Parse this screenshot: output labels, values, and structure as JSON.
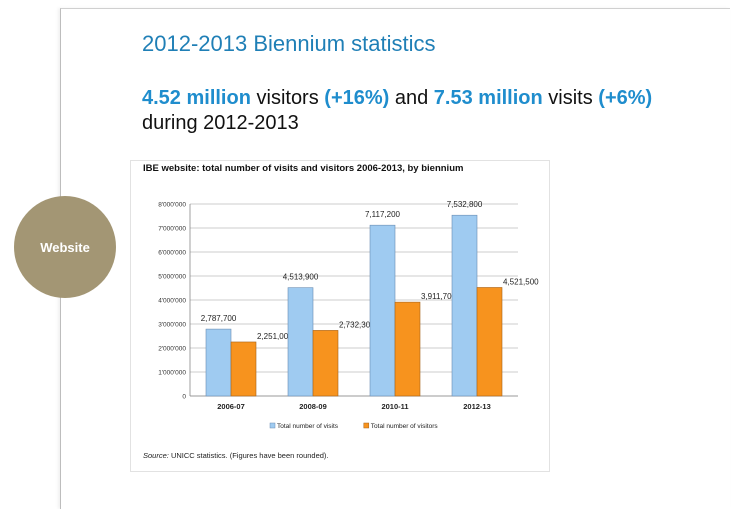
{
  "slide": {
    "title": "2012-2013 Biennium statistics",
    "headline": {
      "visitors_value": "4.52 million",
      "visitors_word": " visitors ",
      "visitors_change": "(+16%)",
      "and": " and ",
      "visits_value": "7.53 million",
      "visits_word": " visits ",
      "visits_change": "(+6%)",
      "period": "during 2012-2013"
    },
    "badge_label": "Website",
    "source_label": "Source:",
    "source_text": " UNICC statistics. (Figures have been rounded).",
    "colors": {
      "title": "#1f7fb6",
      "highlight": "#1f8dcd",
      "badge": "#a39674",
      "visits_bar": "#9fcbf1",
      "visitors_bar": "#f7931e"
    }
  },
  "chart_data": {
    "type": "bar",
    "title": "IBE website: total number of visits and visitors 2006-2013, by biennium",
    "categories": [
      "2006-07",
      "2008-09",
      "2010-11",
      "2012-13"
    ],
    "series": [
      {
        "name": "Total number of visits",
        "values": [
          2787700,
          4513900,
          7117200,
          7532800
        ],
        "labels": [
          "2,787,700",
          "4,513,900",
          "7,117,200",
          "7,532,800"
        ]
      },
      {
        "name": "Total number of visitors",
        "values": [
          2251000,
          2732300,
          3911700,
          4521500
        ],
        "labels": [
          "2,251,000",
          "2,732,300",
          "3,911,700",
          "4,521,500"
        ]
      }
    ],
    "ylim": [
      0,
      8000000
    ],
    "yticks": [
      0,
      1000000,
      2000000,
      3000000,
      4000000,
      5000000,
      6000000,
      7000000,
      8000000
    ],
    "ytick_labels": [
      "0",
      "1'000'000",
      "2'000'000",
      "3'000'000",
      "4'000'000",
      "5'000'000",
      "6'000'000",
      "7'000'000",
      "8'000'000"
    ],
    "grid": true,
    "legend": "bottom"
  }
}
